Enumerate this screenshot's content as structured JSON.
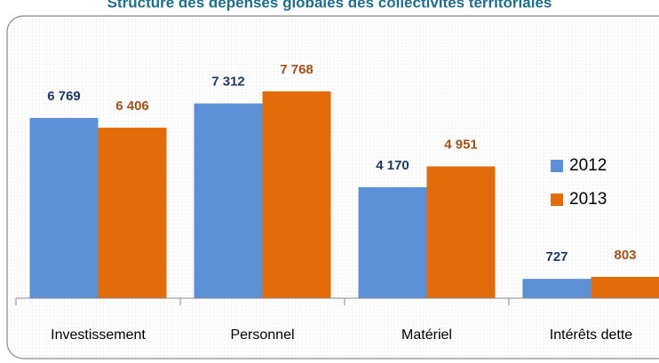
{
  "chart_data": {
    "type": "bar",
    "title": "Structure des dépenses globales des collectivités territoriales",
    "categories": [
      "Investissement",
      "Personnel",
      "Matériel",
      "Intérêts dette"
    ],
    "series": [
      {
        "name": "2012",
        "color": "#5b8fd6",
        "label_color": "#1f3864",
        "values": [
          6769,
          7312,
          4170,
          727
        ],
        "value_labels": [
          "6 769",
          "7 312",
          "4 170",
          "727"
        ]
      },
      {
        "name": "2013",
        "color": "#e36c0a",
        "label_color": "#a0521a",
        "values": [
          6406,
          7768,
          4951,
          803
        ],
        "value_labels": [
          "6 406",
          "7 768",
          "4 951",
          "803"
        ]
      }
    ],
    "ylim": [
      0,
      10000
    ],
    "grid": false,
    "legend": "right"
  }
}
